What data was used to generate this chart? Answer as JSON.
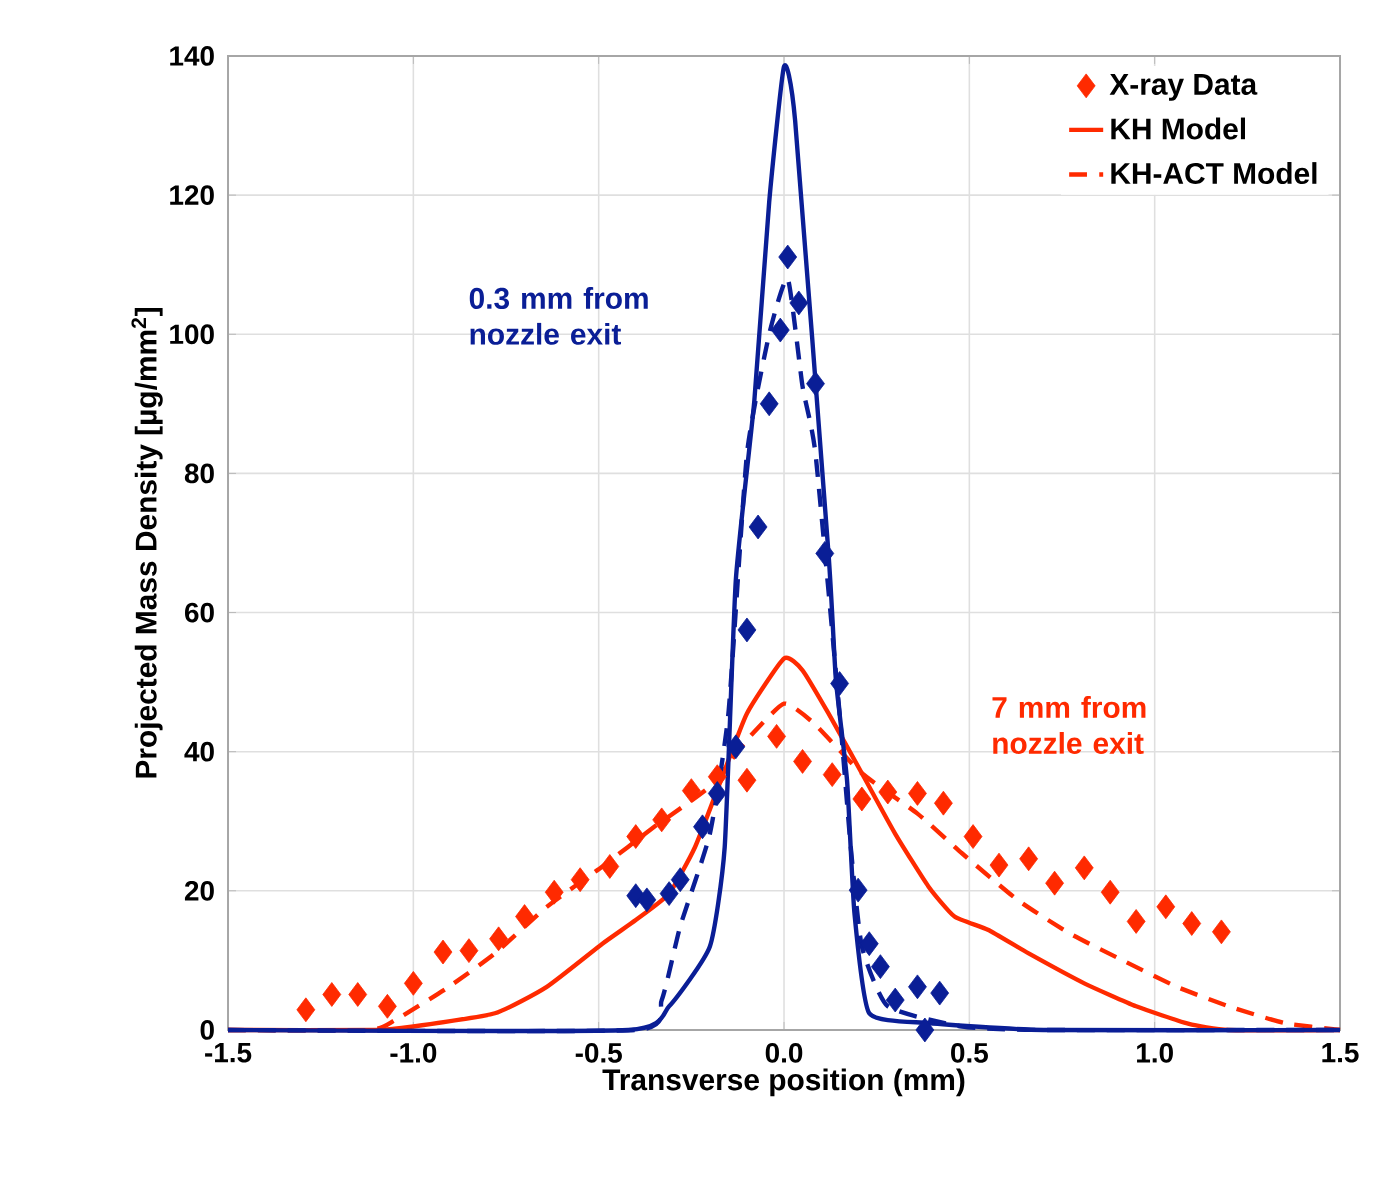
{
  "chart_data": {
    "type": "line",
    "xlabel": "Transverse position (mm)",
    "ylabel": "Projected Mass Density [µg/mm$^{2}$]",
    "xlim": [
      -1.5,
      1.5
    ],
    "xticks": [
      {
        "value": -1.5,
        "label": "-1.5"
      },
      {
        "value": -1.0,
        "label": "-1.0"
      },
      {
        "value": -0.5,
        "label": "-0.5"
      },
      {
        "value": 0.0,
        "label": "0.0"
      },
      {
        "value": 0.5,
        "label": "0.5"
      },
      {
        "value": 1.0,
        "label": "1.0"
      },
      {
        "value": 1.5,
        "label": "1.5"
      }
    ],
    "ylim": [
      0,
      140
    ],
    "yticks": [
      0,
      20,
      40,
      60,
      80,
      100,
      120,
      140
    ],
    "grid": true,
    "legend": "top right",
    "annotations": [
      "0.3 mm from nozzle exit",
      "7 mm from nozzle exit"
    ],
    "series": [
      {
        "name": "X-ray Data",
        "type": "scatter",
        "marker": "diamond",
        "color": "#ff2a00",
        "x": [
          -1.29,
          -1.22,
          -1.15,
          -1.07,
          -1.0,
          -0.92,
          -0.85,
          -0.77,
          -0.7,
          -0.62,
          -0.55,
          -0.47,
          -0.4,
          -0.33,
          -0.25,
          -0.18,
          -0.1,
          -0.02,
          0.05,
          0.13,
          0.21,
          0.28,
          0.36,
          0.43,
          0.51,
          0.58,
          0.66,
          0.73,
          0.81,
          0.88,
          0.95,
          1.03,
          1.1,
          1.18
        ],
        "values": [
          2.9,
          5.1,
          5.1,
          3.4,
          6.7,
          11.2,
          11.4,
          13.1,
          16.3,
          19.8,
          21.6,
          23.5,
          27.8,
          30.2,
          34.4,
          36.4,
          35.9,
          42.2,
          38.6,
          36.7,
          33.2,
          34.2,
          34.0,
          32.6,
          27.8,
          23.7,
          24.6,
          21.1,
          23.3,
          19.8,
          15.6,
          17.7,
          15.3,
          14.1
        ]
      },
      {
        "name": "KH Model",
        "line_style": "solid",
        "color": "#ff2a00",
        "x": [
          -1.5,
          -1.1,
          -1.0,
          -0.78,
          -0.64,
          -0.49,
          -0.4,
          -0.31,
          -0.24,
          -0.17,
          -0.1,
          0.0,
          0.05,
          0.12,
          0.21,
          0.3,
          0.39,
          0.46,
          0.55,
          0.66,
          0.81,
          0.95,
          1.09,
          1.2,
          1.5
        ],
        "values": [
          0,
          0,
          0.5,
          2.4,
          6.2,
          12.4,
          15.8,
          19.6,
          26.3,
          35.9,
          45.5,
          53.4,
          51.7,
          45.5,
          36.9,
          28.2,
          20.6,
          16.3,
          14.4,
          11.0,
          6.7,
          3.4,
          0.9,
          0,
          0
        ]
      },
      {
        "name": "KH-ACT Model",
        "line_style": "dashed",
        "color": "#ff2a00",
        "x": [
          -1.5,
          -1.12,
          -1.05,
          -0.91,
          -0.78,
          -0.64,
          -0.49,
          -0.35,
          -0.2,
          -0.1,
          0.0,
          0.08,
          0.21,
          0.36,
          0.48,
          0.63,
          0.77,
          0.91,
          1.06,
          1.2,
          1.35,
          1.5
        ],
        "values": [
          0,
          0,
          1.4,
          6.0,
          11.0,
          17.7,
          23.5,
          29.2,
          35.0,
          41.7,
          46.9,
          44.1,
          36.9,
          31.1,
          25.4,
          18.7,
          13.9,
          10.1,
          6.2,
          3.4,
          1.0,
          0
        ]
      },
      {
        "type": "scatter",
        "marker": "diamond",
        "color": "#0a1e96",
        "x": [
          -0.4,
          -0.37,
          -0.31,
          -0.28,
          -0.22,
          -0.18,
          -0.13,
          -0.1,
          -0.07,
          -0.04,
          -0.01,
          0.01,
          0.04,
          0.085,
          0.11,
          0.15,
          0.2,
          0.23,
          0.26,
          0.3,
          0.36,
          0.38,
          0.42
        ],
        "values": [
          19.3,
          18.7,
          19.6,
          21.6,
          29.2,
          34.0,
          40.7,
          57.5,
          72.3,
          90.0,
          100.6,
          111.1,
          104.5,
          92.9,
          68.5,
          49.8,
          20.1,
          12.4,
          9.1,
          4.3,
          6.2,
          0,
          5.3
        ]
      },
      {
        "line_style": "solid",
        "color": "#0a1e96",
        "x": [
          -1.5,
          -0.42,
          -0.31,
          -0.2,
          -0.16,
          -0.13,
          -0.08,
          -0.04,
          0.0,
          0.03,
          0.12,
          0.14,
          0.17,
          0.19,
          0.23,
          0.39,
          0.7,
          1.5
        ],
        "values": [
          0,
          0,
          3.4,
          12.0,
          26.3,
          64.7,
          90.5,
          119.0,
          138.5,
          130.7,
          68.5,
          50.3,
          35.9,
          16.8,
          2.4,
          1.0,
          0,
          0
        ]
      },
      {
        "line_style": "dashed",
        "color": "#0a1e96",
        "x": [
          -1.5,
          -0.4,
          -0.33,
          -0.28,
          -0.2,
          -0.15,
          -0.1,
          -0.04,
          0.01,
          0.05,
          0.085,
          0.15,
          0.18,
          0.21,
          0.28,
          0.48,
          0.7,
          1.5
        ],
        "values": [
          0,
          0,
          4.3,
          14.9,
          28.2,
          45.5,
          82.8,
          100.0,
          108.0,
          92.5,
          82.8,
          45.5,
          26.3,
          12.0,
          3.4,
          0.5,
          0,
          0
        ]
      }
    ]
  }
}
